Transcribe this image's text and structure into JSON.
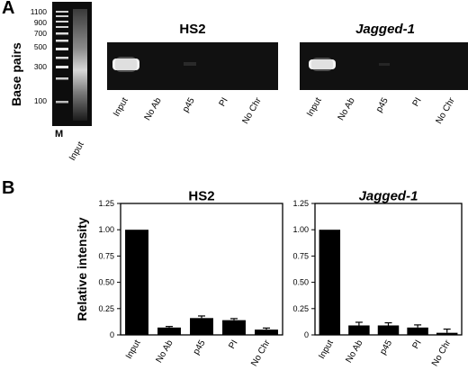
{
  "panel_a": {
    "letter": "A",
    "ylabel": "Base pairs",
    "marker_ticks": [
      "1100",
      "900",
      "700",
      "500",
      "300",
      "100"
    ],
    "ladder_lane_labels": [
      "M",
      "Input"
    ],
    "gels": [
      {
        "title": "HS2",
        "italic": false,
        "lanes": [
          "Input",
          "No Ab",
          "p45",
          "PI",
          "No Chr"
        ]
      },
      {
        "title": "Jagged-1",
        "italic": true,
        "lanes": [
          "Input",
          "No Ab",
          "p45",
          "PI",
          "No Chr"
        ]
      }
    ]
  },
  "panel_b": {
    "letter": "B"
  },
  "chart_data": [
    {
      "type": "bar",
      "title": "HS2",
      "ylabel": "Relative intensity",
      "categories": [
        "Input",
        "No Ab",
        "p45",
        "PI",
        "No Chr"
      ],
      "values": [
        1.0,
        0.07,
        0.16,
        0.14,
        0.05
      ],
      "errors": [
        0.0,
        0.01,
        0.02,
        0.015,
        0.015
      ],
      "ylim": [
        0,
        1.25
      ],
      "yticks": [
        "0",
        "0.25",
        "0.50",
        "0.75",
        "1.00",
        "1.25"
      ]
    },
    {
      "type": "bar",
      "title": "Jagged-1",
      "ylabel": "",
      "categories": [
        "Input",
        "No Ab",
        "p45",
        "PI",
        "No Chr"
      ],
      "values": [
        1.0,
        0.09,
        0.09,
        0.07,
        0.02
      ],
      "errors": [
        0.0,
        0.03,
        0.025,
        0.025,
        0.035
      ],
      "ylim": [
        0,
        1.25
      ],
      "yticks": [
        "0",
        "0.25",
        "0.50",
        "0.75",
        "1.00",
        "1.25"
      ]
    }
  ]
}
